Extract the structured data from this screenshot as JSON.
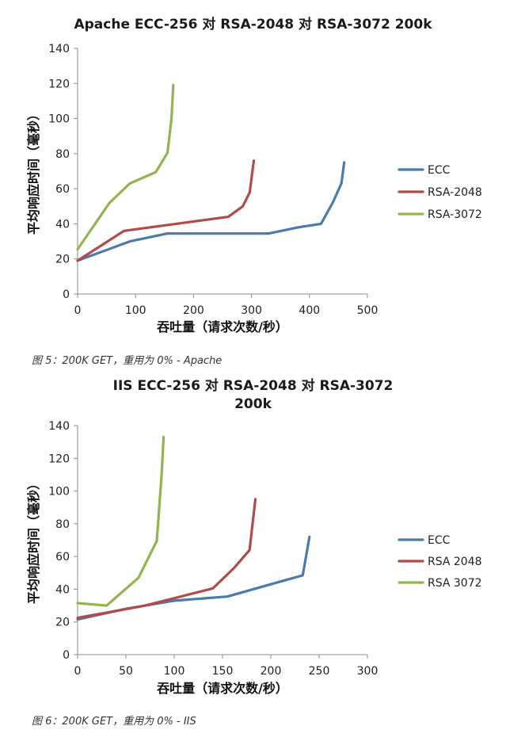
{
  "chart_data": [
    {
      "type": "line",
      "title": "Apache ECC-256 对 RSA-2048 对 RSA-3072 200k",
      "xlabel": "吞吐量（请求次数/秒）",
      "ylabel": "平均响应时间（毫秒）",
      "xlim": [
        0,
        500
      ],
      "ylim": [
        0,
        140
      ],
      "xticks": [
        0,
        100,
        200,
        300,
        400,
        500
      ],
      "yticks": [
        0,
        20,
        40,
        60,
        80,
        100,
        120,
        140
      ],
      "grid": false,
      "legend_position": "right",
      "series": [
        {
          "name": "ECC",
          "color": "#4a7bab",
          "x": [
            0,
            90,
            155,
            250,
            330,
            380,
            420,
            440,
            455,
            460
          ],
          "y": [
            19,
            30,
            34.5,
            34.5,
            34.5,
            38,
            40,
            52,
            63,
            75
          ]
        },
        {
          "name": "RSA-2048",
          "color": "#b14b4b",
          "x": [
            0,
            80,
            170,
            260,
            285,
            297,
            304
          ],
          "y": [
            19,
            36,
            40,
            44,
            50,
            58,
            76
          ]
        },
        {
          "name": "RSA-3072",
          "color": "#93b550",
          "x": [
            0,
            55,
            90,
            135,
            155,
            162,
            165
          ],
          "y": [
            25.5,
            52,
            63,
            69.5,
            80.5,
            100,
            119
          ]
        }
      ]
    },
    {
      "type": "line",
      "title": "IIS ECC-256 对 RSA-2048 对 RSA-3072 200k",
      "xlabel": "吞吐量（请求次数/秒）",
      "ylabel": "平均响应时间（毫秒）",
      "xlim": [
        0,
        300
      ],
      "ylim": [
        0,
        140
      ],
      "xticks": [
        0,
        50,
        100,
        150,
        200,
        250,
        300
      ],
      "yticks": [
        0,
        20,
        40,
        60,
        80,
        100,
        120,
        140
      ],
      "grid": false,
      "legend_position": "right",
      "series": [
        {
          "name": "ECC",
          "color": "#4a7bab",
          "x": [
            0,
            50,
            100,
            155,
            200,
            233,
            240
          ],
          "y": [
            21.5,
            28,
            33,
            35.5,
            43,
            48.5,
            72
          ]
        },
        {
          "name": "RSA 2048",
          "color": "#b14b4b",
          "x": [
            0,
            70,
            140,
            162,
            178,
            184
          ],
          "y": [
            22.5,
            30,
            40.5,
            53,
            64,
            95
          ]
        },
        {
          "name": "RSA 3072",
          "color": "#93b550",
          "x": [
            0,
            30,
            63,
            82,
            87,
            89
          ],
          "y": [
            31.5,
            30,
            47,
            69.5,
            110,
            133
          ]
        }
      ]
    }
  ],
  "captions": [
    "图 5：200K GET，重用为 0% - Apache",
    "图 6：200K GET，重用为 0% - IIS"
  ]
}
